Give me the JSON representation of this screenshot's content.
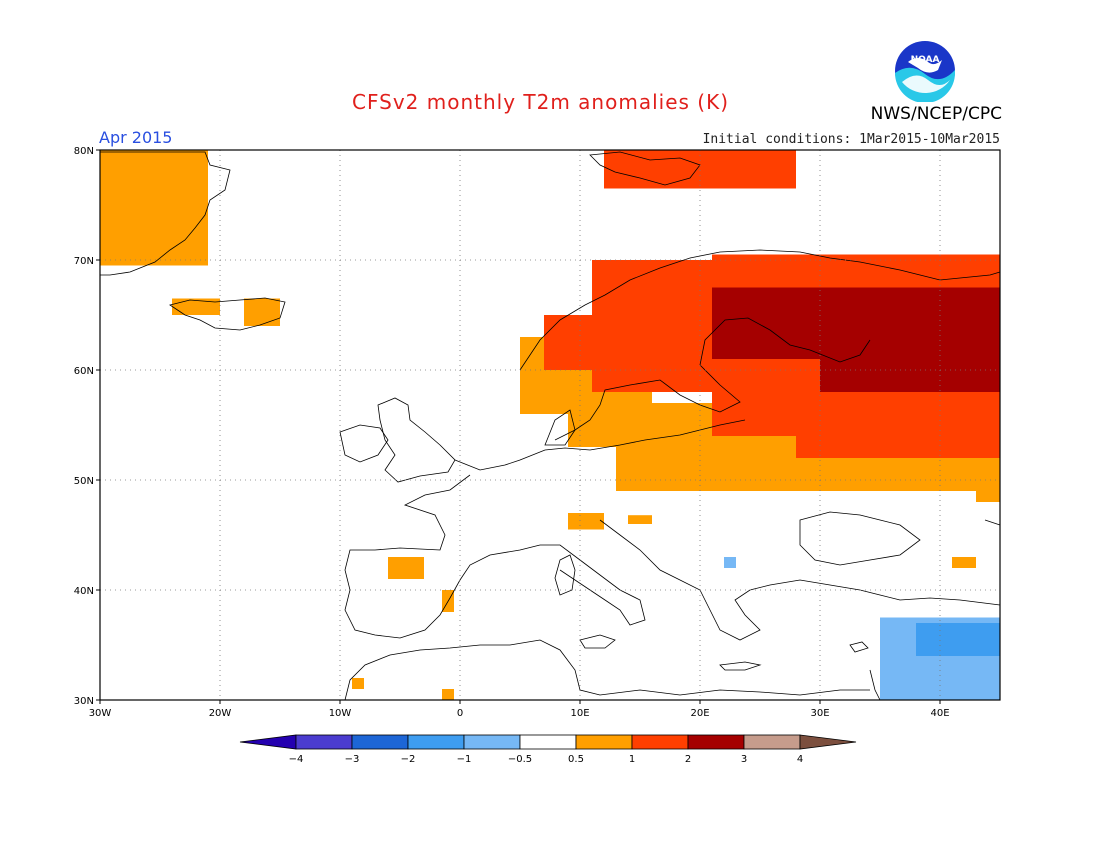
{
  "header": {
    "title": "CFSv2 monthly T2m anomalies (K)",
    "agency": "NWS/NCEP/CPC",
    "logo_text": "NOAA",
    "month_label": "Apr 2015",
    "initial_conditions": "Initial conditions: 1Mar2015-10Mar2015"
  },
  "map": {
    "lon_range": [
      -30,
      45
    ],
    "lat_range": [
      30,
      80
    ],
    "lon_ticks": [
      {
        "lon": -30,
        "label": "30W"
      },
      {
        "lon": -20,
        "label": "20W"
      },
      {
        "lon": -10,
        "label": "10W"
      },
      {
        "lon": 0,
        "label": "0"
      },
      {
        "lon": 10,
        "label": "10E"
      },
      {
        "lon": 20,
        "label": "20E"
      },
      {
        "lon": 30,
        "label": "30E"
      },
      {
        "lon": 40,
        "label": "40E"
      }
    ],
    "lat_ticks": [
      {
        "lat": 30,
        "label": "30N"
      },
      {
        "lat": 40,
        "label": "40N"
      },
      {
        "lat": 50,
        "label": "50N"
      },
      {
        "lat": 60,
        "label": "60N"
      },
      {
        "lat": 70,
        "label": "70N"
      },
      {
        "lat": 80,
        "label": "80N"
      }
    ],
    "colors": {
      "c05_1": "#ff9f00",
      "c1_2": "#ff3f00",
      "c2_3": "#a50000",
      "cm1_m05": "#76b8f5",
      "cm2_m1": "#3e9df0"
    },
    "anomaly_regions": [
      {
        "cls": "c05_1",
        "lon": [
          -30,
          -21
        ],
        "lat": [
          69.5,
          80
        ]
      },
      {
        "cls": "c05_1",
        "lon": [
          -24,
          -20
        ],
        "lat": [
          65,
          66.5
        ]
      },
      {
        "cls": "c05_1",
        "lon": [
          -18,
          -15
        ],
        "lat": [
          64,
          66.5
        ]
      },
      {
        "cls": "c1_2",
        "lon": [
          12,
          28
        ],
        "lat": [
          76.5,
          80
        ]
      },
      {
        "cls": "c05_1",
        "lon": [
          5,
          12
        ],
        "lat": [
          56,
          63
        ]
      },
      {
        "cls": "c05_1",
        "lon": [
          9,
          16
        ],
        "lat": [
          53,
          60
        ]
      },
      {
        "cls": "c05_1",
        "lon": [
          13,
          45
        ],
        "lat": [
          49,
          57
        ]
      },
      {
        "cls": "c05_1",
        "lon": [
          20,
          26
        ],
        "lat": [
          67,
          70
        ]
      },
      {
        "cls": "c1_2",
        "lon": [
          11,
          23
        ],
        "lat": [
          58,
          70
        ]
      },
      {
        "cls": "c1_2",
        "lon": [
          7,
          13
        ],
        "lat": [
          60,
          65
        ]
      },
      {
        "cls": "c1_2",
        "lon": [
          21,
          45
        ],
        "lat": [
          54,
          70.5
        ]
      },
      {
        "cls": "c1_2",
        "lon": [
          28,
          45
        ],
        "lat": [
          52,
          57
        ]
      },
      {
        "cls": "c2_3",
        "lon": [
          21,
          45
        ],
        "lat": [
          61,
          67.5
        ]
      },
      {
        "cls": "c2_3",
        "lon": [
          30,
          45
        ],
        "lat": [
          58,
          62
        ]
      },
      {
        "cls": "c05_1",
        "lon": [
          43,
          45
        ],
        "lat": [
          48,
          52
        ]
      },
      {
        "cls": "c05_1",
        "lon": [
          9,
          12
        ],
        "lat": [
          45.5,
          47
        ]
      },
      {
        "cls": "c05_1",
        "lon": [
          14,
          16
        ],
        "lat": [
          46,
          46.8
        ]
      },
      {
        "cls": "c05_1",
        "lon": [
          -6,
          -3
        ],
        "lat": [
          41,
          43
        ]
      },
      {
        "cls": "c05_1",
        "lon": [
          -1.5,
          -0.5
        ],
        "lat": [
          38,
          40
        ]
      },
      {
        "cls": "c05_1",
        "lon": [
          41,
          43
        ],
        "lat": [
          42,
          43
        ]
      },
      {
        "cls": "c05_1",
        "lon": [
          -9,
          -8
        ],
        "lat": [
          31,
          32
        ]
      },
      {
        "cls": "c05_1",
        "lon": [
          -1.5,
          -0.5
        ],
        "lat": [
          30,
          31
        ]
      },
      {
        "cls": "cm1_m05",
        "lon": [
          22,
          23
        ],
        "lat": [
          42,
          43
        ]
      },
      {
        "cls": "cm1_m05",
        "lon": [
          35,
          45
        ],
        "lat": [
          30,
          37.5
        ]
      },
      {
        "cls": "cm2_m1",
        "lon": [
          38,
          45
        ],
        "lat": [
          34,
          37
        ]
      }
    ]
  },
  "colorbar": {
    "colors": [
      "#2400b0",
      "#4b3ccf",
      "#1d66d6",
      "#3e9df0",
      "#76b8f5",
      "#ffffff",
      "#ff9f00",
      "#ff3f00",
      "#a50000",
      "#c69c8c",
      "#7c4f3e"
    ],
    "labels": [
      "−4",
      "−3",
      "−2",
      "−1",
      "−0.5",
      "0.5",
      "1",
      "2",
      "3",
      "4"
    ]
  }
}
